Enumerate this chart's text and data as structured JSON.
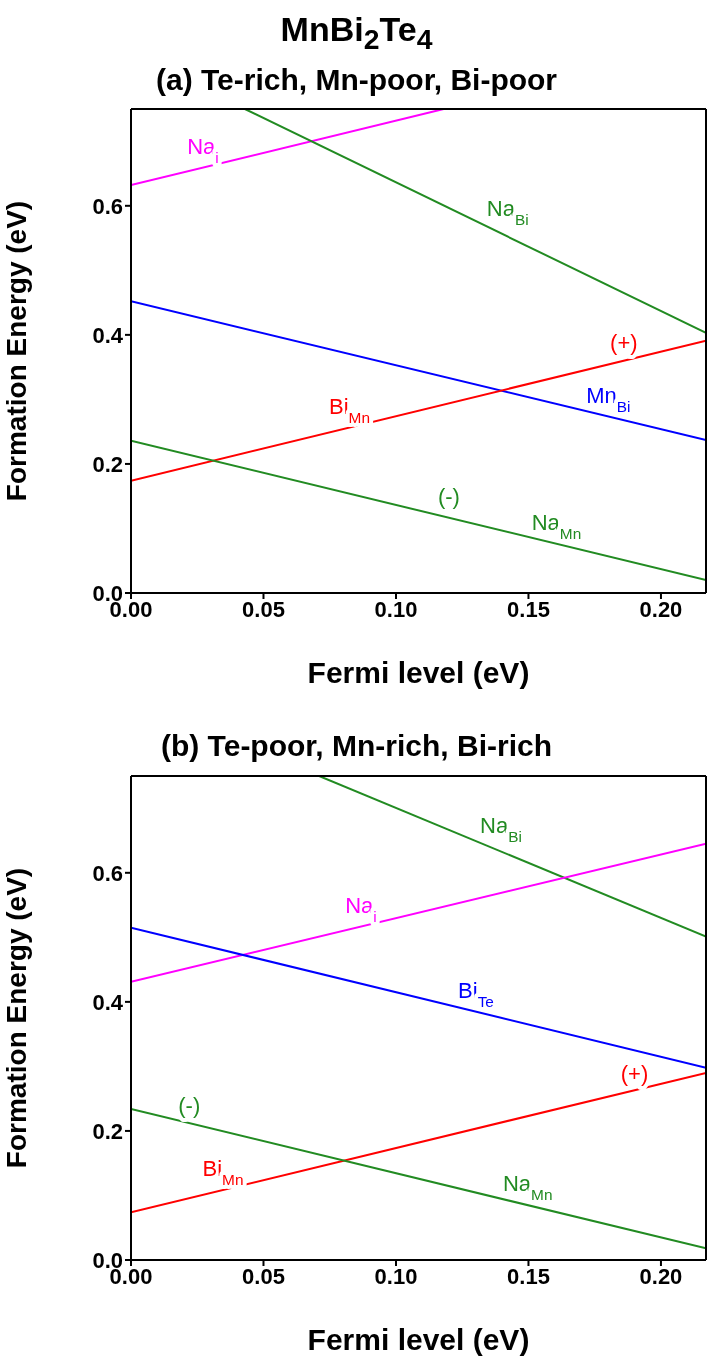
{
  "chart_data": [
    {
      "type": "line",
      "title": "MnBi$_{2}$Te$_{4}$",
      "subtitle": "(a) Te-rich, Mn-poor, Bi-poor",
      "xlabel": "Fermi level (eV)",
      "ylabel": "Formation Energy (eV)",
      "xlim": [
        0,
        0.217
      ],
      "ylim": [
        0,
        0.75
      ],
      "xticks": [
        {
          "value": 0,
          "label": "0.00"
        },
        {
          "value": 0.05,
          "label": "0.05"
        },
        {
          "value": 0.1,
          "label": "0.10"
        },
        {
          "value": 0.15,
          "label": "0.15"
        },
        {
          "value": 0.2,
          "label": "0.20"
        }
      ],
      "yticks": [
        {
          "value": 0,
          "label": "0.0"
        },
        {
          "value": 0.2,
          "label": "0.2"
        },
        {
          "value": 0.4,
          "label": "0.4"
        },
        {
          "value": 0.6,
          "label": "0.6"
        }
      ],
      "series": [
        {
          "name": "Na$_{i}$",
          "color": "#ff00ff",
          "x": [
            0,
            0.118
          ],
          "values": [
            0.632,
            0.75
          ]
        },
        {
          "name": "Na$_{Bi}$",
          "color": "#228b22",
          "x": [
            0.043,
            0.217
          ],
          "values": [
            0.75,
            0.403
          ]
        },
        {
          "name": "Mn$_{Bi}$",
          "color": "#0000ff",
          "x": [
            0,
            0.217
          ],
          "values": [
            0.452,
            0.237
          ]
        },
        {
          "name": "Bi$_{Mn}$",
          "color": "#ff0000",
          "x": [
            0,
            0.217
          ],
          "values": [
            0.174,
            0.391
          ]
        },
        {
          "name": "Na$_{Mn}$",
          "color": "#228b22",
          "x": [
            0,
            0.217
          ],
          "values": [
            0.236,
            0.02
          ]
        }
      ],
      "annotations": [
        {
          "text": "(+)",
          "x": 0.186,
          "y": 0.36
        },
        {
          "text": "(-)",
          "x": 0.12,
          "y": 0.12
        }
      ]
    },
    {
      "type": "line",
      "title": "(b) Te-poor, Mn-rich, Bi-rich",
      "xlabel": "Fermi level (eV)",
      "ylabel": "Formation Energy (eV)",
      "xlim": [
        0,
        0.217
      ],
      "ylim": [
        0,
        0.75
      ],
      "xticks": [
        {
          "value": 0,
          "label": "0.00"
        },
        {
          "value": 0.05,
          "label": "0.05"
        },
        {
          "value": 0.1,
          "label": "0.10"
        },
        {
          "value": 0.15,
          "label": "0.15"
        },
        {
          "value": 0.2,
          "label": "0.20"
        }
      ],
      "yticks": [
        {
          "value": 0,
          "label": "0.0"
        },
        {
          "value": 0.2,
          "label": "0.2"
        },
        {
          "value": 0.4,
          "label": "0.4"
        },
        {
          "value": 0.6,
          "label": "0.6"
        }
      ],
      "series": [
        {
          "name": "Na$_{Bi}$",
          "color": "#228b22",
          "x": [
            0.071,
            0.217
          ],
          "values": [
            0.75,
            0.501
          ]
        },
        {
          "name": "Na$_{i}$",
          "color": "#ff00ff",
          "x": [
            0,
            0.217
          ],
          "values": [
            0.431,
            0.645
          ]
        },
        {
          "name": "Bi$_{Te}$",
          "color": "#0000ff",
          "x": [
            0,
            0.217
          ],
          "values": [
            0.515,
            0.298
          ]
        },
        {
          "name": "Bi$_{Mn}$",
          "color": "#ff0000",
          "x": [
            0,
            0.217
          ],
          "values": [
            0.074,
            0.29
          ]
        },
        {
          "name": "Na$_{Mn}$",
          "color": "#228b22",
          "x": [
            0,
            0.217
          ],
          "values": [
            0.234,
            0.018
          ]
        }
      ],
      "annotations": [
        {
          "text": "(+)",
          "x": 0.19,
          "y": 0.26
        },
        {
          "text": "(-)",
          "x": 0.022,
          "y": 0.21
        }
      ]
    }
  ]
}
